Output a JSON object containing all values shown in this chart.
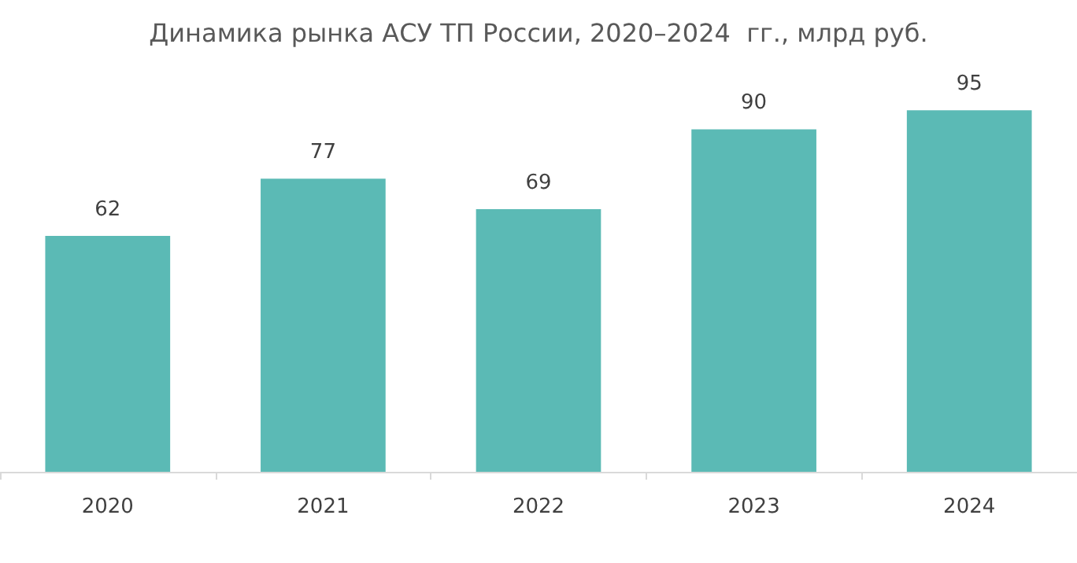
{
  "chart_data": {
    "type": "bar",
    "title": "Динамика рынка АСУ ТП России, 2020–2024  гг., млрд руб.",
    "categories": [
      "2020",
      "2021",
      "2022",
      "2023",
      "2024"
    ],
    "values": [
      62,
      77,
      69,
      90,
      95
    ],
    "color": "#5bbab5",
    "data_labels": true
  }
}
